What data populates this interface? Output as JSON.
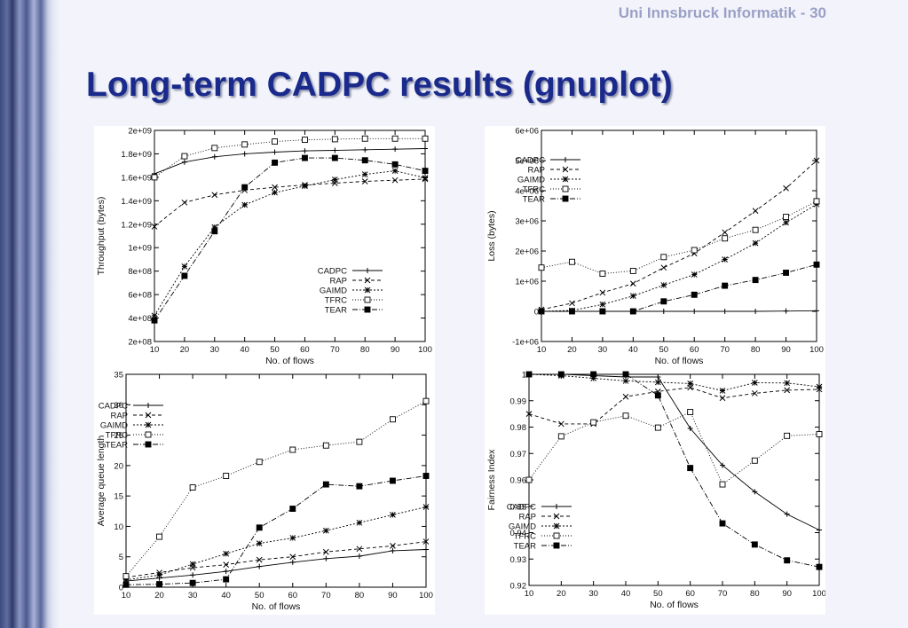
{
  "header": {
    "course": "Uni Innsbruck Informatik - 30"
  },
  "slide": {
    "title": "Long-term CADPC results (gnuplot)"
  },
  "chart_data": [
    {
      "type": "line",
      "id": "throughput",
      "xlabel": "No. of flows",
      "ylabel": "Throughput (bytes)",
      "x": [
        10,
        20,
        30,
        40,
        50,
        60,
        70,
        80,
        90,
        100
      ],
      "xticks": [
        "10",
        "20",
        "30",
        "40",
        "50",
        "60",
        "70",
        "80",
        "90",
        "100"
      ],
      "ylim": [
        200000000,
        2000000000
      ],
      "yticks": [
        200000000,
        400000000,
        600000000,
        800000000,
        1000000000,
        1200000000,
        1400000000,
        1600000000,
        1800000000,
        2000000000
      ],
      "ytick_labels": [
        "2e+08",
        "4e+08",
        "6e+08",
        "8e+08",
        "1e+09",
        "1.2e+09",
        "1.4e+09",
        "1.6e+09",
        "1.8e+09",
        "2e+09"
      ],
      "legend": "bottom-right",
      "series": [
        {
          "name": "CADPC",
          "values": [
            1630000000,
            1730000000,
            1775000000,
            1800000000,
            1815000000,
            1825000000,
            1830000000,
            1835000000,
            1840000000,
            1845000000
          ]
        },
        {
          "name": "RAP",
          "values": [
            1180000000,
            1385000000,
            1450000000,
            1490000000,
            1515000000,
            1535000000,
            1550000000,
            1565000000,
            1575000000,
            1585000000
          ]
        },
        {
          "name": "GAIMD",
          "values": [
            420000000,
            840000000,
            1175000000,
            1365000000,
            1470000000,
            1525000000,
            1580000000,
            1625000000,
            1655000000,
            1595000000
          ]
        },
        {
          "name": "TFRC",
          "values": [
            1600000000,
            1780000000,
            1850000000,
            1880000000,
            1905000000,
            1920000000,
            1925000000,
            1930000000,
            1930000000,
            1930000000
          ]
        },
        {
          "name": "TEAR",
          "values": [
            380000000,
            760000000,
            1140000000,
            1515000000,
            1725000000,
            1765000000,
            1765000000,
            1745000000,
            1710000000,
            1655000000
          ]
        }
      ]
    },
    {
      "type": "line",
      "id": "loss",
      "xlabel": "No. of flows",
      "ylabel": "Loss (bytes)",
      "x": [
        10,
        20,
        30,
        40,
        50,
        60,
        70,
        80,
        90,
        100
      ],
      "xticks": [
        "10",
        "20",
        "30",
        "40",
        "50",
        "60",
        "70",
        "80",
        "90",
        "100"
      ],
      "ylim": [
        -1000000,
        6000000
      ],
      "yticks": [
        -1000000,
        0,
        1000000,
        2000000,
        3000000,
        4000000,
        5000000,
        6000000
      ],
      "ytick_labels": [
        "-1e+06",
        "0",
        "1e+06",
        "2e+06",
        "3e+06",
        "4e+06",
        "5e+06",
        "6e+06"
      ],
      "legend": "top-left",
      "series": [
        {
          "name": "CADPC",
          "values": [
            0,
            0,
            0,
            0,
            0,
            0,
            0,
            0,
            10000,
            20000
          ]
        },
        {
          "name": "RAP",
          "values": [
            60000,
            270000,
            620000,
            920000,
            1450000,
            1920000,
            2620000,
            3330000,
            4080000,
            5000000
          ]
        },
        {
          "name": "GAIMD",
          "values": [
            0,
            30000,
            230000,
            510000,
            870000,
            1220000,
            1720000,
            2260000,
            2940000,
            3550000
          ]
        },
        {
          "name": "TFRC",
          "values": [
            1450000,
            1640000,
            1250000,
            1340000,
            1800000,
            2030000,
            2420000,
            2700000,
            3130000,
            3650000
          ]
        },
        {
          "name": "TEAR",
          "values": [
            0,
            0,
            0,
            0,
            330000,
            550000,
            850000,
            1040000,
            1280000,
            1550000
          ]
        }
      ]
    },
    {
      "type": "line",
      "id": "queue",
      "xlabel": "No. of flows",
      "ylabel": "Average queue length",
      "x": [
        10,
        20,
        30,
        40,
        50,
        60,
        70,
        80,
        90,
        100
      ],
      "xticks": [
        "10",
        "20",
        "30",
        "40",
        "50",
        "60",
        "70",
        "80",
        "90",
        "100"
      ],
      "ylim": [
        0,
        35
      ],
      "yticks": [
        0,
        5,
        10,
        15,
        20,
        25,
        30,
        35
      ],
      "ytick_labels": [
        "0",
        "5",
        "10",
        "15",
        "20",
        "25",
        "30",
        "35"
      ],
      "legend": "top-left",
      "series": [
        {
          "name": "CADPC",
          "values": [
            1.0,
            1.5,
            2.0,
            2.6,
            3.4,
            4.1,
            4.7,
            5.1,
            6.0,
            6.2
          ]
        },
        {
          "name": "RAP",
          "values": [
            1.6,
            2.4,
            3.2,
            3.7,
            4.5,
            5.0,
            5.8,
            6.3,
            6.8,
            7.5
          ]
        },
        {
          "name": "GAIMD",
          "values": [
            1.2,
            2.0,
            3.8,
            5.5,
            7.2,
            8.1,
            9.3,
            10.6,
            11.9,
            13.2
          ]
        },
        {
          "name": "TFRC",
          "values": [
            1.8,
            8.3,
            16.4,
            18.3,
            20.6,
            22.6,
            23.3,
            23.9,
            27.6,
            30.6
          ]
        },
        {
          "name": "TEAR",
          "values": [
            0.4,
            0.5,
            0.7,
            1.3,
            9.8,
            12.9,
            16.9,
            16.6,
            17.5,
            18.3
          ]
        }
      ]
    },
    {
      "type": "line",
      "id": "fairness",
      "xlabel": "No. of flows",
      "ylabel": "Fairness Index",
      "x": [
        10,
        20,
        30,
        40,
        50,
        60,
        70,
        80,
        90,
        100
      ],
      "xticks": [
        "10",
        "20",
        "30",
        "40",
        "50",
        "60",
        "70",
        "80",
        "90",
        "100"
      ],
      "ylim": [
        0.92,
        1.0
      ],
      "yticks": [
        0.92,
        0.93,
        0.94,
        0.95,
        0.96,
        0.97,
        0.98,
        0.99,
        1.0
      ],
      "ytick_labels": [
        "0.92",
        "0.93",
        "0.94",
        "0.95",
        "0.96",
        "0.97",
        "0.98",
        "0.99",
        "1"
      ],
      "legend": "bottom-left",
      "series": [
        {
          "name": "CADPC",
          "values": [
            1.0,
            1.0,
            0.9995,
            0.999,
            0.999,
            0.9795,
            0.9655,
            0.9555,
            0.947,
            0.941
          ]
        },
        {
          "name": "RAP",
          "values": [
            0.985,
            0.9812,
            0.9812,
            0.9915,
            0.9935,
            0.995,
            0.991,
            0.9928,
            0.994,
            0.9943
          ]
        },
        {
          "name": "GAIMD",
          "values": [
            1.0,
            0.9995,
            0.9985,
            0.9975,
            0.997,
            0.9965,
            0.9938,
            0.9968,
            0.9967,
            0.9953
          ]
        },
        {
          "name": "TFRC",
          "values": [
            0.96,
            0.9765,
            0.9818,
            0.9843,
            0.9798,
            0.9857,
            0.9583,
            0.9673,
            0.9767,
            0.9773
          ]
        },
        {
          "name": "TEAR",
          "values": [
            1.0,
            1.0,
            1.0,
            1.0,
            0.992,
            0.9645,
            0.9435,
            0.9355,
            0.9295,
            0.927
          ]
        }
      ]
    }
  ]
}
